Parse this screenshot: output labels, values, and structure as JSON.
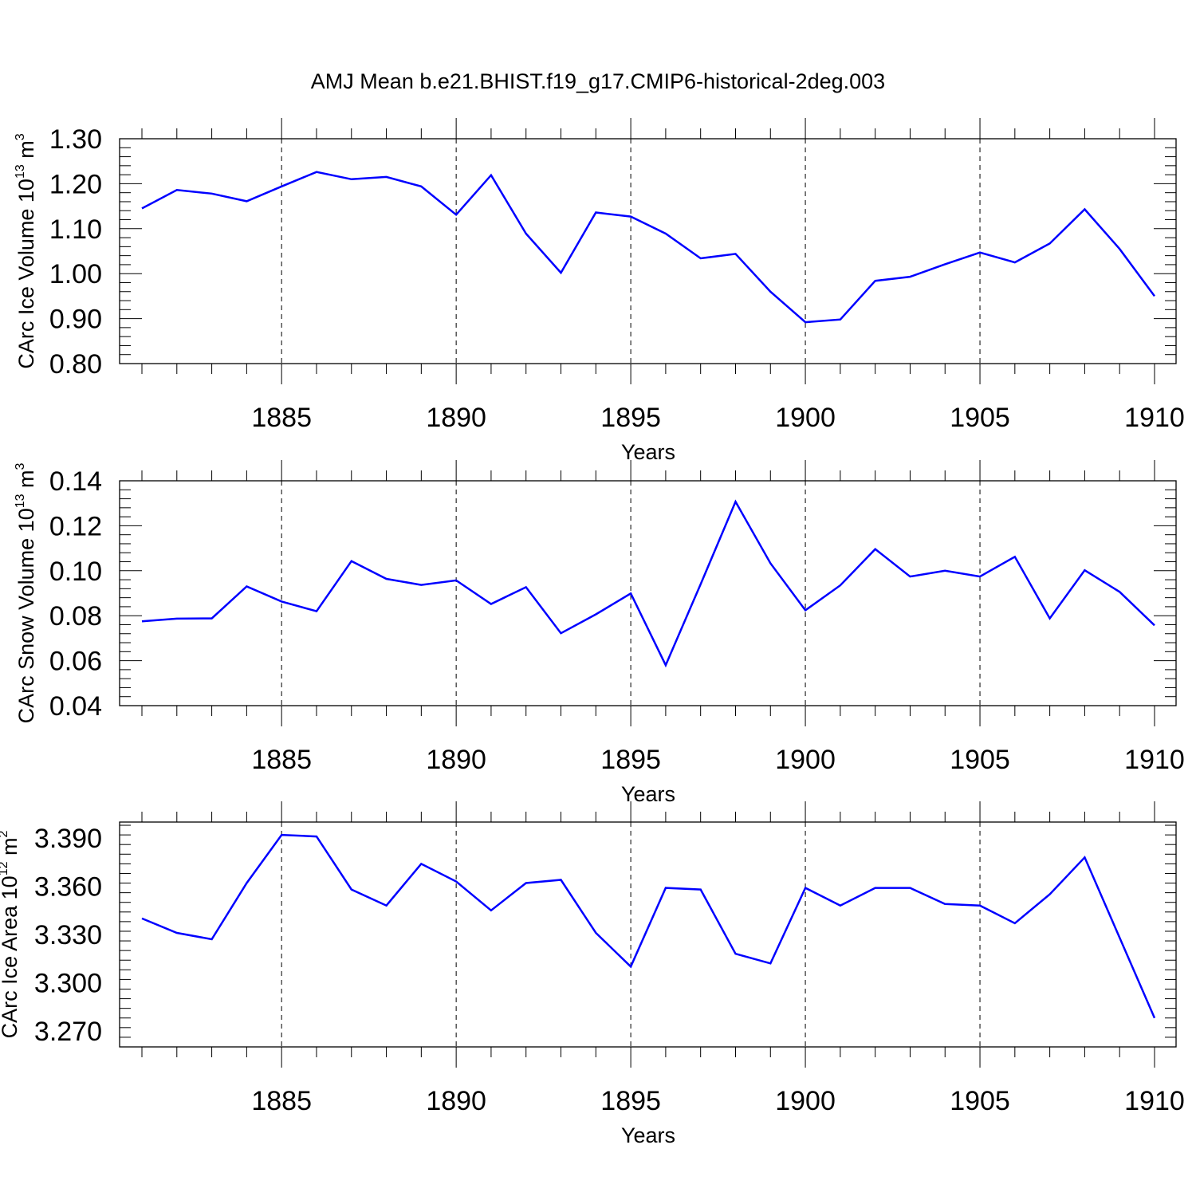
{
  "figure_title": "AMJ Mean b.e21.BHIST.f19_g17.CMIP6-historical-2deg.003",
  "colors": {
    "line": "#0000ff",
    "axis": "#000000",
    "grid": "#000000"
  },
  "chart_data": [
    {
      "type": "line",
      "title": "",
      "xlabel": "Years",
      "ylabel": {
        "text": "CArc Ice Volume 10",
        "exponent": "13",
        "unit": " m",
        "unit_exponent": "3"
      },
      "xlim": [
        1881,
        1910
      ],
      "ylim": [
        0.8,
        1.3
      ],
      "xticks": [
        1885,
        1890,
        1895,
        1900,
        1905,
        1910
      ],
      "xtick_labels": [
        "1885",
        "1890",
        "1895",
        "1900",
        "1905",
        "1910"
      ],
      "yticks": [
        0.8,
        0.9,
        1.0,
        1.1,
        1.2,
        1.3
      ],
      "ytick_labels": [
        "0.80",
        "0.90",
        "1.00",
        "1.10",
        "1.20",
        "1.30"
      ],
      "grid": "vertical dashed at major x ticks",
      "series": [
        {
          "color": "#0000ff",
          "x": [
            1881,
            1882,
            1883,
            1884,
            1885,
            1886,
            1887,
            1888,
            1889,
            1890,
            1891,
            1892,
            1893,
            1894,
            1895,
            1896,
            1897,
            1898,
            1899,
            1900,
            1901,
            1902,
            1903,
            1904,
            1905,
            1906,
            1907,
            1908,
            1909,
            1910
          ],
          "values": [
            1.145,
            1.186,
            1.178,
            1.161,
            1.194,
            1.226,
            1.21,
            1.215,
            1.194,
            1.131,
            1.219,
            1.089,
            1.002,
            1.136,
            1.127,
            1.089,
            1.034,
            1.044,
            0.96,
            0.892,
            0.898,
            0.984,
            0.993,
            1.021,
            1.047,
            1.025,
            1.067,
            1.143,
            1.055,
            0.95
          ]
        }
      ]
    },
    {
      "type": "line",
      "title": "",
      "xlabel": "Years",
      "ylabel": {
        "text": "CArc Snow Volume 10",
        "exponent": "13",
        "unit": " m",
        "unit_exponent": "3"
      },
      "xlim": [
        1881,
        1910
      ],
      "ylim": [
        0.04,
        0.14
      ],
      "xticks": [
        1885,
        1890,
        1895,
        1900,
        1905,
        1910
      ],
      "xtick_labels": [
        "1885",
        "1890",
        "1895",
        "1900",
        "1905",
        "1910"
      ],
      "yticks": [
        0.04,
        0.06,
        0.08,
        0.1,
        0.12,
        0.14
      ],
      "ytick_labels": [
        "0.04",
        "0.06",
        "0.08",
        "0.10",
        "0.12",
        "0.14"
      ],
      "grid": "vertical dashed at major x ticks",
      "series": [
        {
          "color": "#0000ff",
          "x": [
            1881,
            1882,
            1883,
            1884,
            1885,
            1886,
            1887,
            1888,
            1889,
            1890,
            1891,
            1892,
            1893,
            1894,
            1895,
            1896,
            1897,
            1898,
            1899,
            1900,
            1901,
            1902,
            1903,
            1904,
            1905,
            1906,
            1907,
            1908,
            1909,
            1910
          ],
          "values": [
            0.0775,
            0.0787,
            0.0788,
            0.093,
            0.0863,
            0.082,
            0.1043,
            0.0964,
            0.0937,
            0.0957,
            0.0852,
            0.0927,
            0.0722,
            0.0806,
            0.0899,
            0.058,
            0.094,
            0.1307,
            0.1033,
            0.0824,
            0.0935,
            0.1096,
            0.0974,
            0.1,
            0.0974,
            0.1062,
            0.0788,
            0.1002,
            0.0906,
            0.0757
          ]
        }
      ]
    },
    {
      "type": "line",
      "title": "",
      "xlabel": "Years",
      "ylabel": {
        "text": "CArc Ice Area 10",
        "exponent": "12",
        "unit": " m",
        "unit_exponent": "2"
      },
      "xlim": [
        1881,
        1910
      ],
      "ylim": [
        3.26,
        3.4
      ],
      "xticks": [
        1885,
        1890,
        1895,
        1900,
        1905,
        1910
      ],
      "xtick_labels": [
        "1885",
        "1890",
        "1895",
        "1900",
        "1905",
        "1910"
      ],
      "yticks": [
        3.27,
        3.3,
        3.33,
        3.36,
        3.39
      ],
      "ytick_labels": [
        "3.270",
        "3.300",
        "3.330",
        "3.360",
        "3.390"
      ],
      "grid": "vertical dashed at major x ticks",
      "series": [
        {
          "color": "#0000ff",
          "x": [
            1881,
            1882,
            1883,
            1884,
            1885,
            1886,
            1887,
            1888,
            1889,
            1890,
            1891,
            1892,
            1893,
            1894,
            1895,
            1896,
            1897,
            1898,
            1899,
            1900,
            1901,
            1902,
            1903,
            1904,
            1905,
            1906,
            1907,
            1908,
            1909,
            1910
          ],
          "values": [
            3.34,
            3.331,
            3.327,
            3.362,
            3.392,
            3.391,
            3.358,
            3.348,
            3.374,
            3.363,
            3.345,
            3.362,
            3.364,
            3.331,
            3.31,
            3.359,
            3.358,
            3.318,
            3.312,
            3.359,
            3.348,
            3.359,
            3.359,
            3.349,
            3.348,
            3.337,
            3.355,
            3.378,
            3.328,
            3.278
          ]
        }
      ]
    }
  ]
}
